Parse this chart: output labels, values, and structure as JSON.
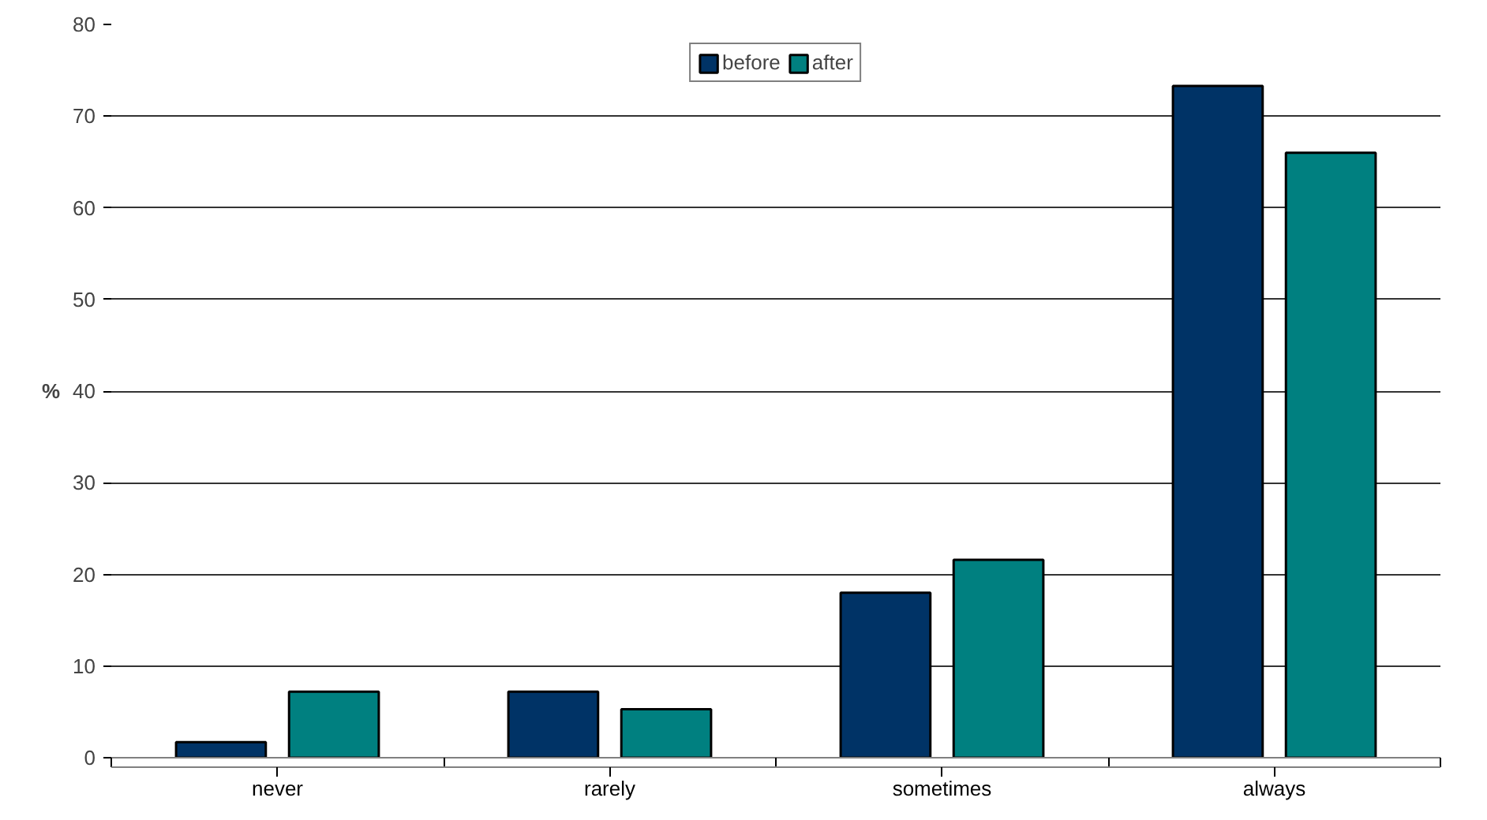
{
  "chart_data": {
    "type": "bar",
    "ylabel": "%",
    "categories": [
      "never",
      "rarely",
      "sometimes",
      "always"
    ],
    "series": [
      {
        "name": "before",
        "color": "#003366",
        "values": [
          1.7,
          7.2,
          18.0,
          73.3
        ]
      },
      {
        "name": "after",
        "color": "#008080",
        "values": [
          7.2,
          5.3,
          21.6,
          66.0
        ]
      }
    ],
    "ylim": [
      0,
      80
    ],
    "yticks": [
      0,
      10,
      20,
      30,
      40,
      50,
      60,
      70,
      80
    ],
    "grid": "y",
    "legend": "top"
  }
}
